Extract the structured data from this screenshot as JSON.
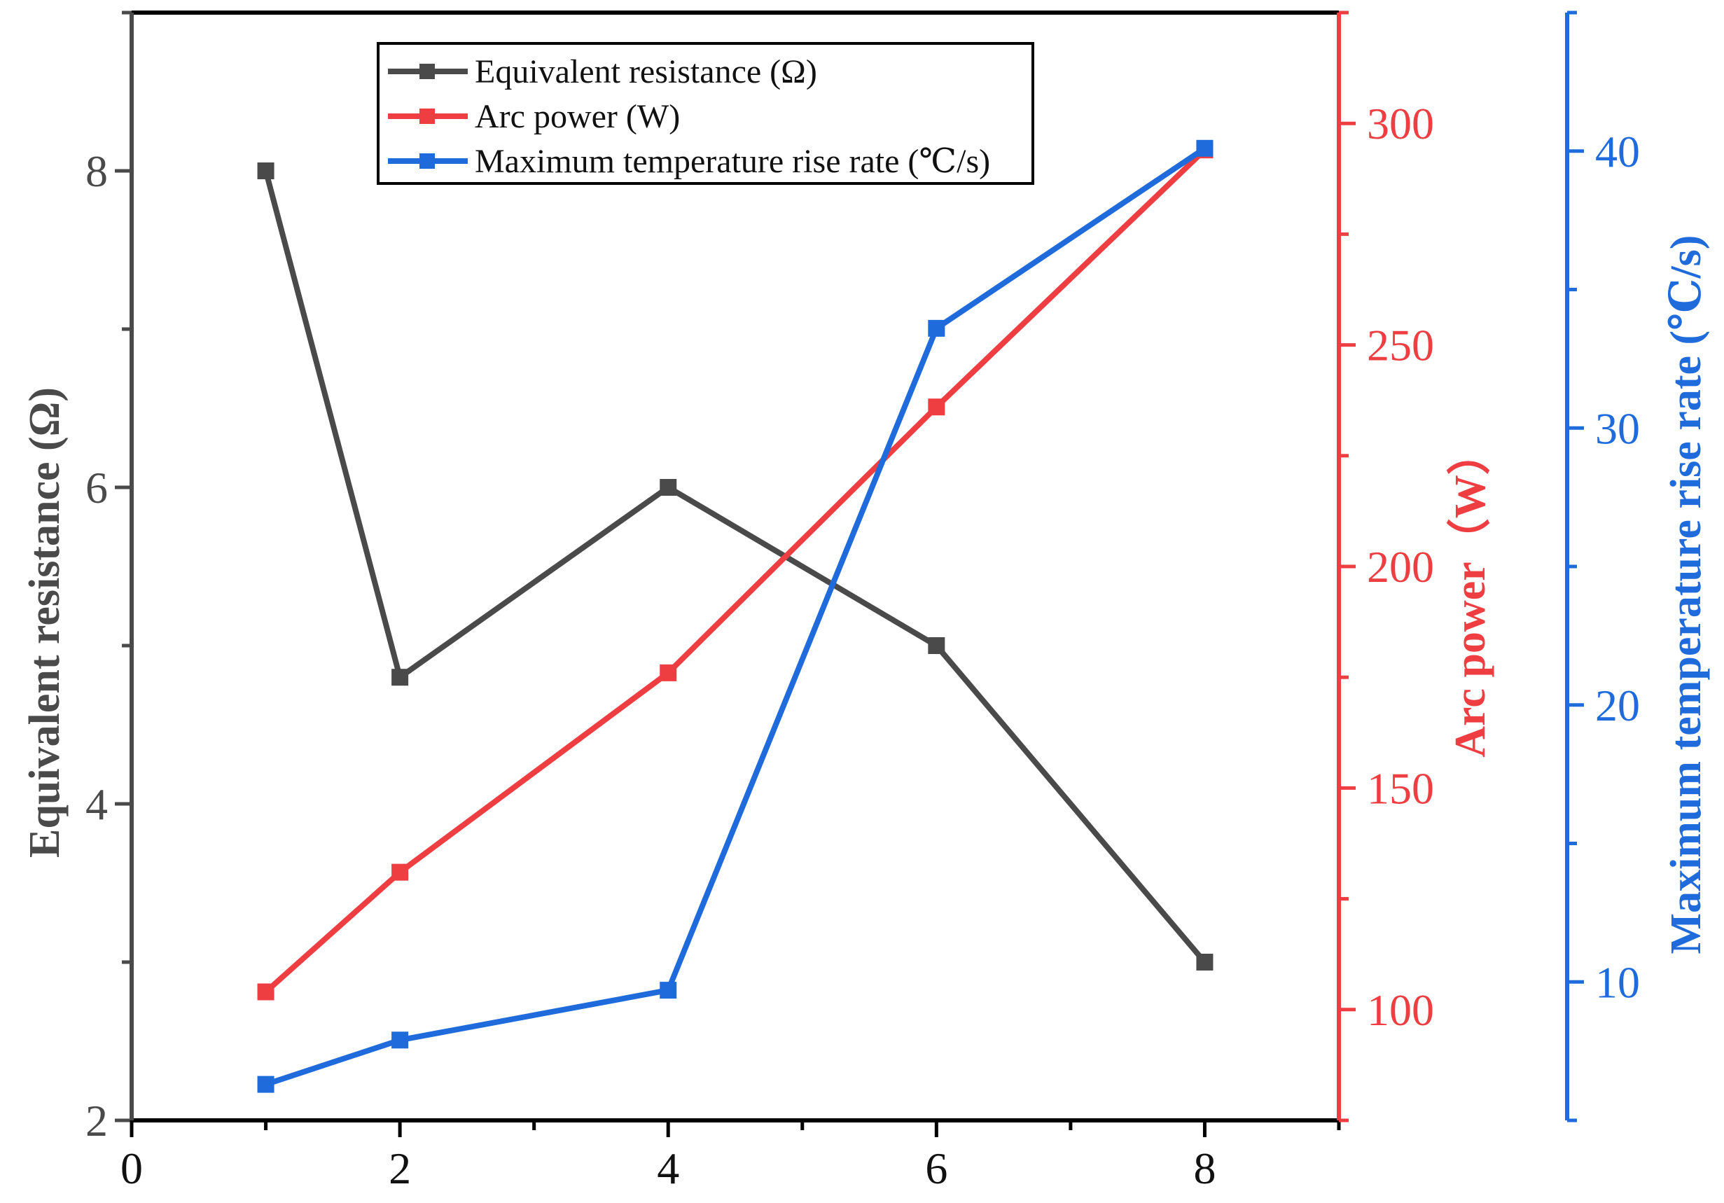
{
  "chart_data": {
    "type": "line",
    "title": "",
    "x": [
      1,
      2,
      4,
      6,
      8
    ],
    "xlim": [
      0,
      9
    ],
    "xticks": [
      0,
      2,
      4,
      6,
      8
    ],
    "xlabel": "",
    "grid": false,
    "legend_position": "top-center",
    "series": [
      {
        "name": "Equivalent resistance (Ω)",
        "axis": "left",
        "color": "#4a4a4a",
        "values": [
          8.0,
          4.8,
          6.0,
          5.0,
          3.0
        ]
      },
      {
        "name": "Arc power (W)",
        "axis": "right1",
        "color": "#ef3e42",
        "values": [
          104,
          131,
          176,
          236,
          294
        ]
      },
      {
        "name": "Maximum temperature rise rate (℃/s)",
        "axis": "right2",
        "color": "#1f6bdc",
        "values": [
          6.3,
          7.9,
          9.7,
          33.6,
          40.1
        ]
      }
    ],
    "axes": {
      "left": {
        "label": "Equivalent resistance (Ω)",
        "color": "#4a4a4a",
        "ylim": [
          2,
          9
        ],
        "ticks": [
          2,
          4,
          6,
          8
        ]
      },
      "right1": {
        "label": "Arc power（W）",
        "color": "#ef3e42",
        "ylim": [
          75,
          325
        ],
        "ticks": [
          100,
          150,
          200,
          250,
          300
        ]
      },
      "right2": {
        "label": "Maximum temperature rise rate (℃/s)",
        "color": "#1f6bdc",
        "ylim": [
          5,
          45
        ],
        "ticks": [
          10,
          20,
          30,
          40
        ]
      }
    }
  }
}
